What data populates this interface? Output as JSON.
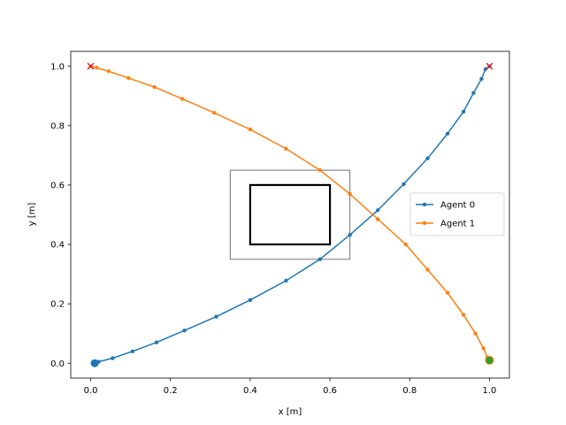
{
  "chart_data": {
    "type": "line",
    "xlabel": "x [m]",
    "ylabel": "y [m]",
    "xlim": [
      -0.05,
      1.05
    ],
    "ylim": [
      -0.05,
      1.05
    ],
    "xticks": [
      0.0,
      0.2,
      0.4,
      0.6,
      0.8,
      1.0
    ],
    "yticks": [
      0.0,
      0.2,
      0.4,
      0.6,
      0.8,
      1.0
    ],
    "xtick_labels": [
      "0.0",
      "0.2",
      "0.4",
      "0.6",
      "0.8",
      "1.0"
    ],
    "ytick_labels": [
      "0.0",
      "0.2",
      "0.4",
      "0.6",
      "0.8",
      "1.0"
    ],
    "grid": false,
    "legend_position": "center-right",
    "series": [
      {
        "name": "Agent 0",
        "color": "#1f77b4",
        "x": [
          0.01,
          0.02,
          0.055,
          0.105,
          0.165,
          0.235,
          0.315,
          0.4,
          0.49,
          0.575,
          0.65,
          0.72,
          0.785,
          0.845,
          0.895,
          0.935,
          0.96,
          0.98,
          0.99,
          1.0
        ],
        "y": [
          0.0,
          0.005,
          0.017,
          0.04,
          0.07,
          0.11,
          0.157,
          0.213,
          0.278,
          0.35,
          0.432,
          0.515,
          0.603,
          0.69,
          0.773,
          0.847,
          0.91,
          0.957,
          0.99,
          1.0
        ],
        "start": [
          0.01,
          0.0
        ],
        "goal": [
          1.0,
          1.0
        ]
      },
      {
        "name": "Agent 1",
        "color": "#ff7f0e",
        "x": [
          0.0,
          0.015,
          0.045,
          0.095,
          0.16,
          0.23,
          0.31,
          0.4,
          0.49,
          0.575,
          0.65,
          0.72,
          0.79,
          0.845,
          0.895,
          0.935,
          0.965,
          0.985,
          0.995,
          1.0
        ],
        "y": [
          1.0,
          0.995,
          0.983,
          0.96,
          0.93,
          0.89,
          0.843,
          0.787,
          0.722,
          0.65,
          0.57,
          0.485,
          0.4,
          0.315,
          0.237,
          0.163,
          0.1,
          0.05,
          0.02,
          0.01
        ],
        "start": [
          0.0,
          1.0
        ],
        "goal": [
          1.0,
          0.01
        ]
      }
    ],
    "obstacles": [
      {
        "kind": "inner",
        "x0": 0.4,
        "x1": 0.6,
        "y0": 0.4,
        "y1": 0.6,
        "color": "#000000"
      },
      {
        "kind": "margin",
        "x0": 0.35,
        "x1": 0.65,
        "y0": 0.35,
        "y1": 0.65,
        "color": "#808080"
      }
    ],
    "markers": {
      "start_color_agent0": "#1f77b4",
      "goal_cross_color": "#d62728",
      "goal_dot_color": "#2ca02c"
    }
  }
}
